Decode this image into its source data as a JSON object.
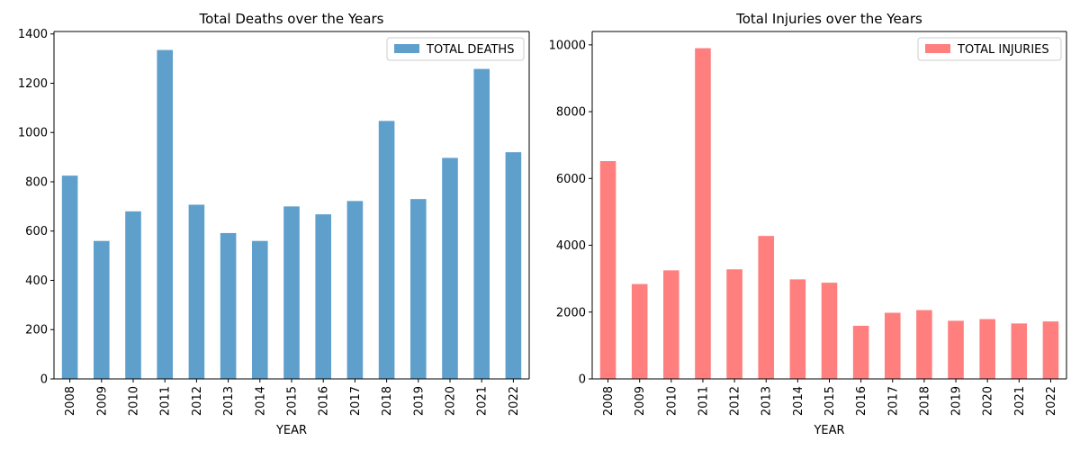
{
  "chart_data": [
    {
      "type": "bar",
      "title": "Total Deaths over the Years",
      "xlabel": "YEAR",
      "ylabel": "",
      "categories": [
        "2008",
        "2009",
        "2010",
        "2011",
        "2012",
        "2013",
        "2014",
        "2015",
        "2016",
        "2017",
        "2018",
        "2019",
        "2020",
        "2021",
        "2022"
      ],
      "series": [
        {
          "name": "TOTAL DEATHS",
          "color": "#5f9fcc",
          "values": [
            825,
            560,
            680,
            1335,
            707,
            592,
            560,
            700,
            668,
            722,
            1047,
            730,
            897,
            1258,
            920
          ]
        }
      ],
      "ylim": [
        0,
        1410
      ],
      "yticks": [
        0,
        200,
        400,
        600,
        800,
        1000,
        1200,
        1400
      ],
      "legend": "top-right",
      "grid": false
    },
    {
      "type": "bar",
      "title": "Total Injuries over the Years",
      "xlabel": "YEAR",
      "ylabel": "",
      "categories": [
        "2008",
        "2009",
        "2010",
        "2011",
        "2012",
        "2013",
        "2014",
        "2015",
        "2016",
        "2017",
        "2018",
        "2019",
        "2020",
        "2021",
        "2022"
      ],
      "series": [
        {
          "name": "TOTAL INJURIES",
          "color": "#ff7f7f",
          "values": [
            6520,
            2840,
            3250,
            9900,
            3280,
            4280,
            2980,
            2880,
            1590,
            1980,
            2060,
            1740,
            1790,
            1660,
            1720
          ]
        }
      ],
      "ylim": [
        0,
        10400
      ],
      "yticks": [
        0,
        2000,
        4000,
        6000,
        8000,
        10000
      ],
      "legend": "top-right",
      "grid": false
    }
  ]
}
